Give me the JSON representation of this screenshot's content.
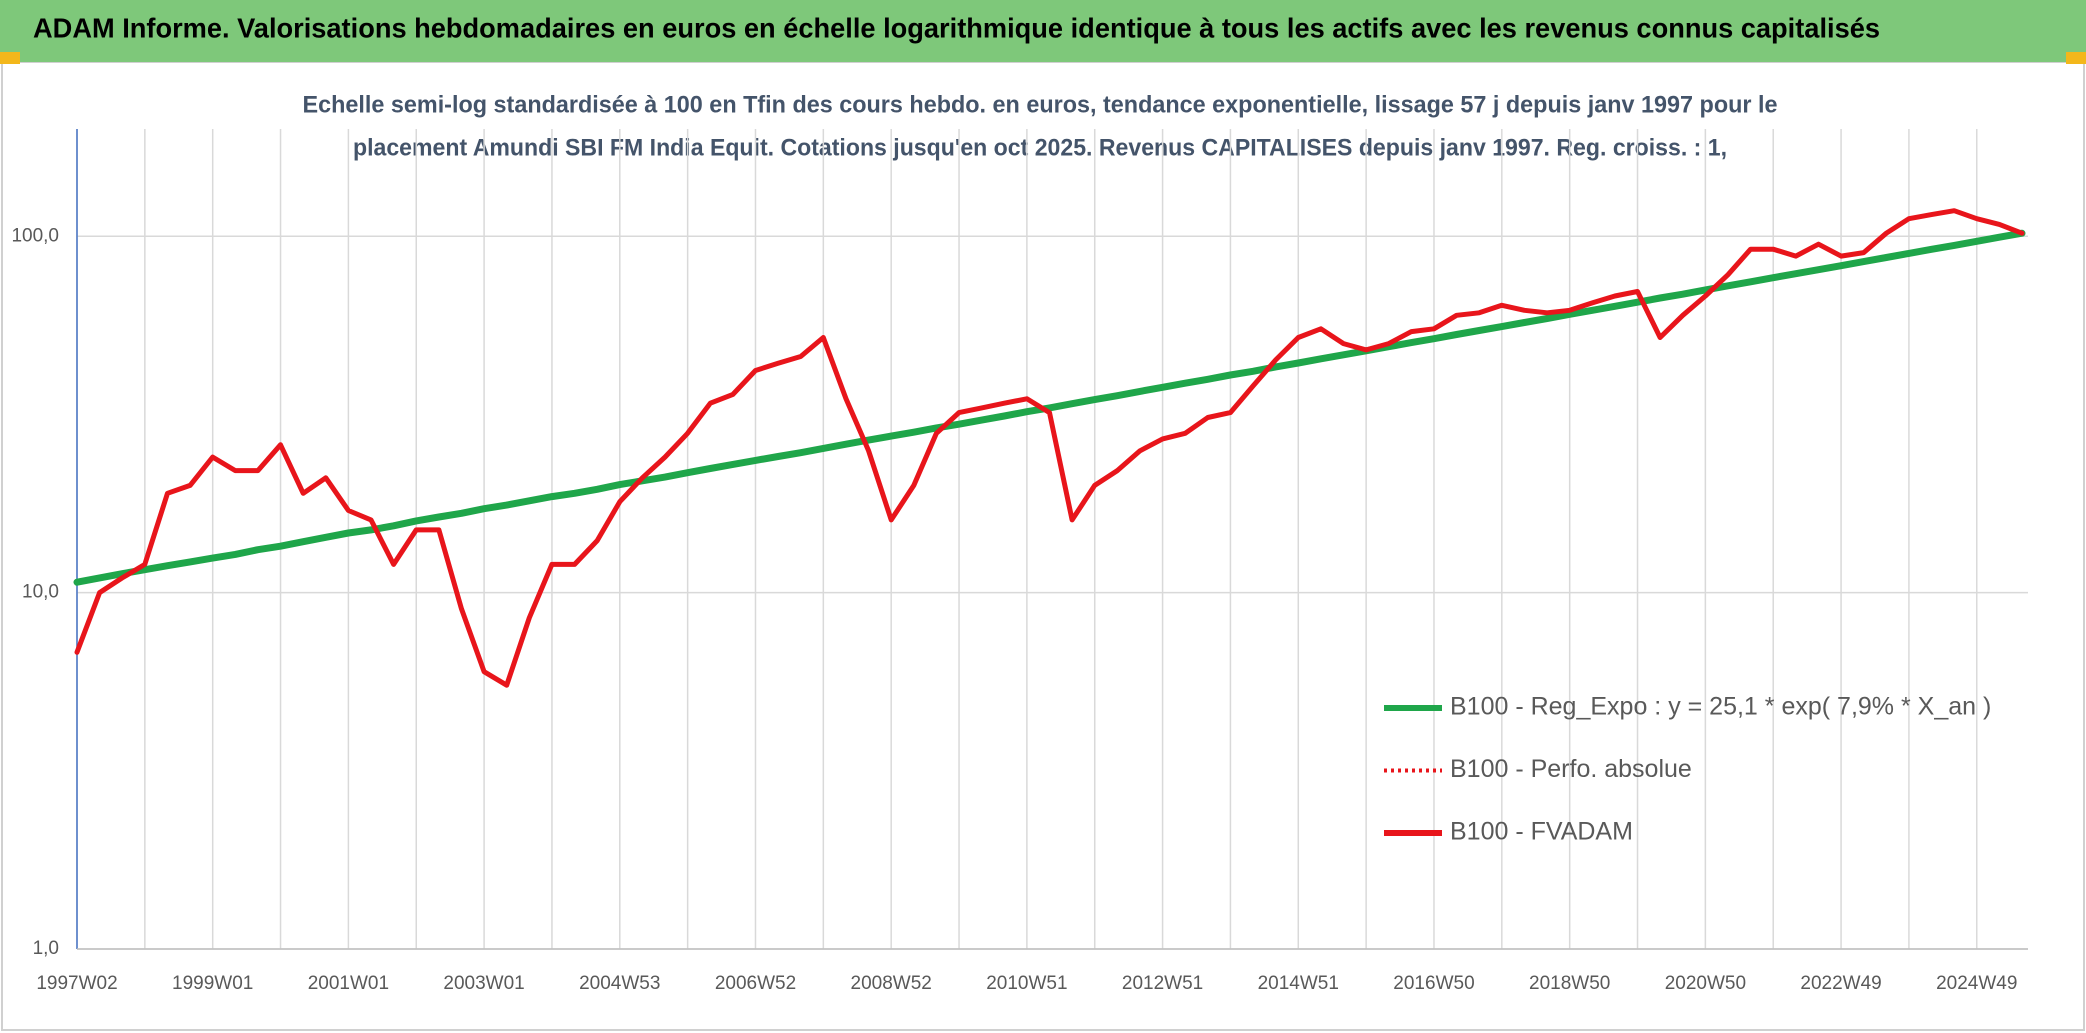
{
  "header": {
    "title": "ADAM Informe. Valorisations hebdomadaires en euros en échelle logarithmique identique à tous les actifs avec les revenus connus capitalisés"
  },
  "chart_data": {
    "type": "line",
    "subtitle": [
      "Echelle semi-log standardisée à 100 en Tfin des cours hebdo. en euros, tendance exponentielle, lissage 57 j depuis janv 1997 pour le",
      "placement Amundi SBI FM India Equit. Cotations jusqu'en oct 2025. Revenus CAPITALISES depuis janv 1997. Reg. croiss. : 1,"
    ],
    "log_scale": true,
    "grid": true,
    "legend": "lower right",
    "ylim": [
      1,
      200
    ],
    "yticks": [
      {
        "value": 1,
        "label": "1,0"
      },
      {
        "value": 10,
        "label": "10,0"
      },
      {
        "value": 100,
        "label": "100,0"
      }
    ],
    "categories": [
      "1997W02",
      null,
      null,
      null,
      null,
      null,
      "1999W01",
      null,
      null,
      null,
      null,
      null,
      "2001W01",
      null,
      null,
      null,
      null,
      null,
      "2003W01",
      null,
      null,
      null,
      null,
      null,
      "2004W53",
      null,
      null,
      null,
      null,
      null,
      "2006W52",
      null,
      null,
      null,
      null,
      null,
      "2008W52",
      null,
      null,
      null,
      null,
      null,
      "2010W51",
      null,
      null,
      null,
      null,
      null,
      "2012W51",
      null,
      null,
      null,
      null,
      null,
      "2014W51",
      null,
      null,
      null,
      null,
      null,
      "2016W50",
      null,
      null,
      null,
      null,
      null,
      "2018W50",
      null,
      null,
      null,
      null,
      null,
      "2020W50",
      null,
      null,
      null,
      null,
      null,
      "2022W49",
      null,
      null,
      null,
      null,
      null,
      "2024W49",
      null,
      null
    ],
    "series": [
      {
        "name": "B100 - Reg_Expo : y = 25,1 * exp( 7,9% *  X_an )",
        "color": "#1fa64a",
        "line_style": "solid",
        "values": [
          10.7,
          11.0,
          11.3,
          11.6,
          11.9,
          12.2,
          12.5,
          12.8,
          13.2,
          13.5,
          13.9,
          14.3,
          14.7,
          15.0,
          15.4,
          15.9,
          16.3,
          16.7,
          17.2,
          17.6,
          18.1,
          18.6,
          19.0,
          19.5,
          20.1,
          20.6,
          21.1,
          21.7,
          22.3,
          22.9,
          23.5,
          24.1,
          24.7,
          25.4,
          26.1,
          26.8,
          27.5,
          28.2,
          29.0,
          29.7,
          30.5,
          31.3,
          32.2,
          33.0,
          33.9,
          34.8,
          35.7,
          36.7,
          37.7,
          38.7,
          39.7,
          40.8,
          41.8,
          43.0,
          44.1,
          45.3,
          46.5,
          47.7,
          49.0,
          50.3,
          51.6,
          53.0,
          54.4,
          55.8,
          57.3,
          58.8,
          60.4,
          62.0,
          63.6,
          65.3,
          67.1,
          68.8,
          70.7,
          72.6,
          74.5,
          76.5,
          78.5,
          80.6,
          82.7,
          84.9,
          87.2,
          89.5,
          91.9,
          94.3,
          96.8,
          99.4,
          102.0
        ]
      },
      {
        "name": "B100 - Perfo. absolue",
        "color": "#e8151b",
        "line_style": "dotted",
        "values": [
          6.8,
          10,
          11,
          12,
          19,
          20,
          24,
          22,
          22,
          26,
          19,
          21,
          17,
          16,
          12,
          15,
          15,
          9,
          6,
          5.5,
          8.5,
          12,
          12,
          14,
          18,
          21,
          24,
          28,
          34,
          36,
          42,
          44,
          46,
          52,
          35,
          25,
          16,
          20,
          28,
          32,
          33,
          34,
          35,
          32,
          16,
          20,
          22,
          25,
          27,
          28,
          31,
          32,
          38,
          45,
          52,
          55,
          50,
          48,
          50,
          54,
          55,
          60,
          61,
          64,
          62,
          61,
          62,
          65,
          68,
          70,
          52,
          60,
          68,
          78,
          92,
          92,
          88,
          95,
          88,
          90,
          102,
          112,
          115,
          118,
          112,
          108,
          102
        ]
      },
      {
        "name": "B100 - FVADAM",
        "color": "#e8151b",
        "line_style": "solid",
        "values": [
          6.8,
          10,
          11,
          12,
          19,
          20,
          24,
          22,
          22,
          26,
          19,
          21,
          17,
          16,
          12,
          15,
          15,
          9,
          6,
          5.5,
          8.5,
          12,
          12,
          14,
          18,
          21,
          24,
          28,
          34,
          36,
          42,
          44,
          46,
          52,
          35,
          25,
          16,
          20,
          28,
          32,
          33,
          34,
          35,
          32,
          16,
          20,
          22,
          25,
          27,
          28,
          31,
          32,
          38,
          45,
          52,
          55,
          50,
          48,
          50,
          54,
          55,
          60,
          61,
          64,
          62,
          61,
          62,
          65,
          68,
          70,
          52,
          60,
          68,
          78,
          92,
          92,
          88,
          95,
          88,
          90,
          102,
          112,
          115,
          118,
          112,
          108,
          102
        ]
      }
    ]
  }
}
